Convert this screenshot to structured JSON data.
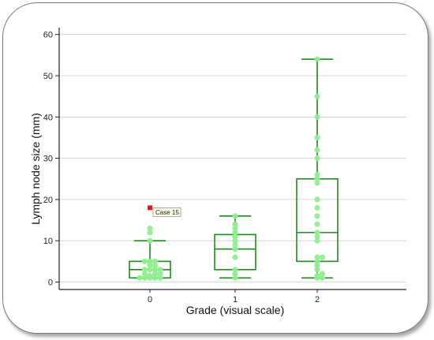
{
  "chart_data": {
    "type": "box",
    "xlabel": "Grade (visual scale)",
    "ylabel": "Lymph node size (mm)",
    "ylim": [
      -1.5,
      62
    ],
    "yticks": [
      0,
      10,
      20,
      30,
      40,
      50,
      60
    ],
    "grid": true,
    "categories": [
      "0",
      "1",
      "2"
    ],
    "boxes": [
      {
        "category": "0",
        "whisker_low": 1,
        "q1": 1,
        "median": 3,
        "q3": 5,
        "whisker_high": 10
      },
      {
        "category": "1",
        "whisker_low": 1,
        "q1": 3,
        "median": 8,
        "q3": 11.5,
        "whisker_high": 16
      },
      {
        "category": "2",
        "whisker_low": 1,
        "q1": 5,
        "median": 12,
        "q3": 25,
        "whisker_high": 54
      }
    ],
    "points": [
      {
        "category": "0",
        "values": [
          1,
          1,
          1,
          1,
          1,
          1.5,
          2,
          2,
          2,
          3,
          3,
          3,
          3,
          4,
          4,
          5,
          5,
          5,
          10,
          12,
          13
        ]
      },
      {
        "category": "1",
        "values": [
          1,
          2,
          3,
          6,
          8,
          9,
          10,
          11,
          12,
          13,
          14,
          16
        ]
      },
      {
        "category": "2",
        "values": [
          1,
          1,
          1.5,
          2,
          3,
          4,
          5,
          6,
          6,
          10,
          11,
          12,
          14,
          16,
          18,
          20,
          24,
          25,
          26,
          30,
          32,
          35,
          40,
          45,
          54
        ]
      }
    ],
    "outlier": {
      "category": "0",
      "value": 18,
      "label": "Case 15"
    },
    "colors": {
      "box": "#1f8a1f",
      "points": "#90ee90",
      "outlier": "#e31a1c",
      "grid": "#cccccc"
    }
  }
}
